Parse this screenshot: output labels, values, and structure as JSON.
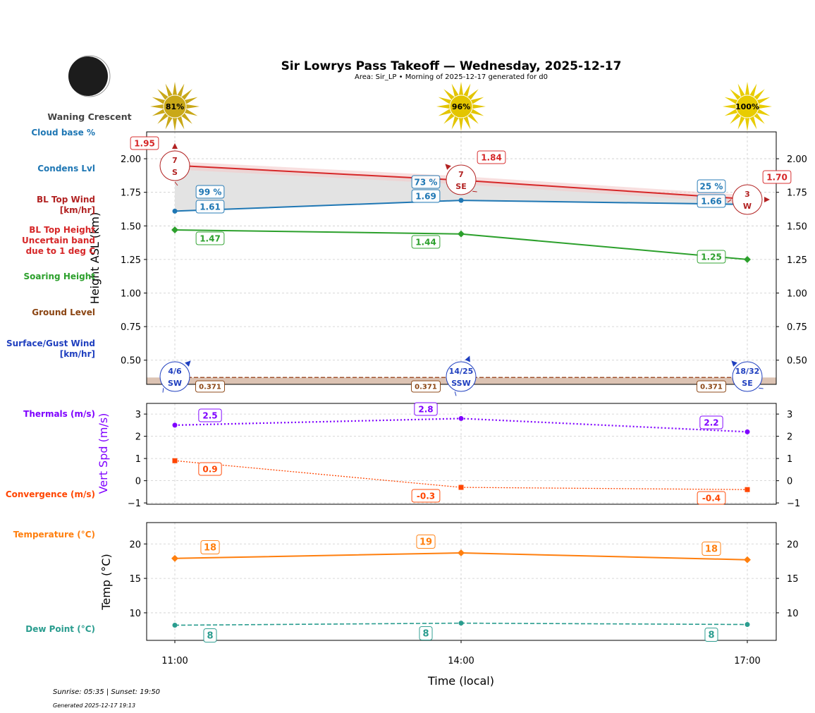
{
  "header": {
    "title": "Sir Lowrys Pass Takeoff — Wednesday, 2025-12-17",
    "subtitle": "Area: Sir_LP • Morning of 2025-12-17 generated for d0"
  },
  "moon": {
    "phase": "Waning Crescent",
    "icon": "moon-waning-crescent-icon"
  },
  "sun": {
    "icon": "sun-icon",
    "percents": [
      "81%",
      "96%",
      "100%"
    ],
    "colors": [
      "#c9a818",
      "#e3c500",
      "#e8cc00"
    ]
  },
  "legend_labels": {
    "cloud_base": [
      "Cloud base %"
    ],
    "condens": [
      "Condens Lvl"
    ],
    "bl_wind": [
      "BL Top Wind",
      "[km/hr]"
    ],
    "bl_height": [
      "BL Top Height",
      "Uncertain band",
      "due to 1 deg C"
    ],
    "soaring": [
      "Soaring Height"
    ],
    "ground": [
      "Ground Level"
    ],
    "surface_wind": [
      "Surface/Gust Wind",
      "[km/hr]"
    ],
    "thermals": [
      "Thermals (m/s)"
    ],
    "convergence": [
      "Convergence (m/s)"
    ],
    "temperature": [
      "Temperature (°C)"
    ],
    "dewpoint": [
      "Dew Point (°C)"
    ]
  },
  "colors": {
    "cloud_base": "#1f77b4",
    "condens": "#1f77b4",
    "bl_wind": "#b22222",
    "bl_height": "#d62728",
    "soaring": "#2ca02c",
    "ground": "#8b4513",
    "surface_wind": "#1f3fbf",
    "thermals": "#7f00ff",
    "convergence": "#ff4500",
    "temperature": "#ff7f0e",
    "dewpoint": "#2a9d8f"
  },
  "footer": {
    "sun_times": "Sunrise: 05:35 | Sunset: 19:50",
    "generated": "Generated 2025-12-17 19:13"
  },
  "chart_data": [
    {
      "type": "line",
      "ylabel": "Height ASL (km)",
      "ylim": [
        0.32,
        2.2
      ],
      "yticks": [
        "0.50",
        "0.75",
        "1.00",
        "1.25",
        "1.50",
        "1.75",
        "2.00"
      ],
      "grid": true,
      "x": [
        "11:00",
        "14:00",
        "17:00"
      ],
      "series": [
        {
          "name": "BL Top Height",
          "values": [
            1.95,
            1.84,
            1.7
          ],
          "labels": [
            "1.95",
            "1.84",
            "1.70"
          ],
          "uncertainty": 0.03
        },
        {
          "name": "Condens Lvl",
          "values": [
            1.61,
            1.69,
            1.66
          ],
          "labels": [
            "1.61",
            "1.69",
            "1.66"
          ]
        },
        {
          "name": "Cloud base %",
          "values": [
            99,
            73,
            25
          ],
          "labels": [
            "99 %",
            "73 %",
            "25 %"
          ]
        },
        {
          "name": "Soaring Height",
          "values": [
            1.47,
            1.44,
            1.25
          ],
          "labels": [
            "1.47",
            "1.44",
            "1.25"
          ]
        },
        {
          "name": "Ground Level",
          "values": [
            0.371,
            0.371,
            0.371
          ],
          "labels": [
            "0.371",
            "0.371",
            "0.371"
          ]
        }
      ],
      "bl_top_wind": [
        {
          "speed": "7",
          "dir": "S"
        },
        {
          "speed": "7",
          "dir": "SE"
        },
        {
          "speed": "3",
          "dir": "W"
        }
      ],
      "surface_wind": [
        {
          "speed": "4/6",
          "dir": "SW"
        },
        {
          "speed": "14/25",
          "dir": "SSW"
        },
        {
          "speed": "18/32",
          "dir": "SE"
        }
      ]
    },
    {
      "type": "line",
      "ylabel": "Vert Spd (m/s)",
      "ylim": [
        -1.06,
        3.48
      ],
      "yticks": [
        "−1",
        "0",
        "1",
        "2",
        "3"
      ],
      "grid": true,
      "x": [
        "11:00",
        "14:00",
        "17:00"
      ],
      "series": [
        {
          "name": "Thermals (m/s)",
          "values": [
            2.5,
            2.8,
            2.2
          ],
          "labels": [
            "2.5",
            "2.8",
            "2.2"
          ]
        },
        {
          "name": "Convergence (m/s)",
          "values": [
            0.9,
            -0.3,
            -0.4
          ],
          "labels": [
            "0.9",
            "-0.3",
            "-0.4"
          ]
        }
      ]
    },
    {
      "type": "line",
      "ylabel": "Temp (°C)",
      "xlabel": "Time (local)",
      "ylim": [
        6.0,
        23.1
      ],
      "yticks": [
        "10",
        "15",
        "20"
      ],
      "grid": true,
      "x": [
        "11:00",
        "14:00",
        "17:00"
      ],
      "series": [
        {
          "name": "Temperature (°C)",
          "values": [
            17.9,
            18.7,
            17.7
          ],
          "labels": [
            "18",
            "19",
            "18"
          ]
        },
        {
          "name": "Dew Point (°C)",
          "values": [
            8.2,
            8.5,
            8.3
          ],
          "labels": [
            "8",
            "8",
            "8"
          ]
        }
      ]
    }
  ]
}
